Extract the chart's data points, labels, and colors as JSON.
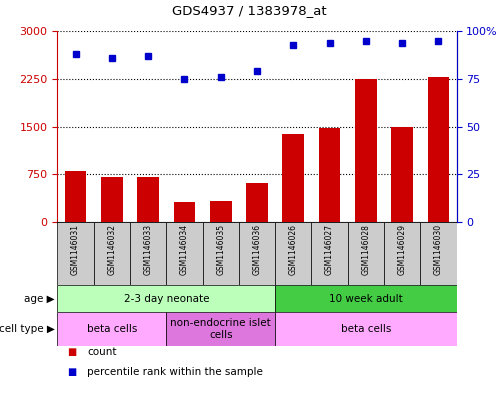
{
  "title": "GDS4937 / 1383978_at",
  "samples": [
    "GSM1146031",
    "GSM1146032",
    "GSM1146033",
    "GSM1146034",
    "GSM1146035",
    "GSM1146036",
    "GSM1146026",
    "GSM1146027",
    "GSM1146028",
    "GSM1146029",
    "GSM1146030"
  ],
  "counts": [
    800,
    710,
    710,
    310,
    330,
    610,
    1380,
    1480,
    2250,
    1500,
    2280
  ],
  "percentiles": [
    88,
    86,
    87,
    75,
    76,
    79,
    93,
    94,
    95,
    94,
    95
  ],
  "ylim_left": [
    0,
    3000
  ],
  "ylim_right": [
    0,
    100
  ],
  "yticks_left": [
    0,
    750,
    1500,
    2250,
    3000
  ],
  "yticks_right": [
    0,
    25,
    50,
    75,
    100
  ],
  "ytick_right_labels": [
    "0",
    "25",
    "50",
    "75",
    "100%"
  ],
  "bar_color": "#cc0000",
  "dot_color": "#0000cc",
  "age_groups": [
    {
      "label": "2-3 day neonate",
      "start": 0,
      "end": 6,
      "color": "#bbffbb"
    },
    {
      "label": "10 week adult",
      "start": 6,
      "end": 11,
      "color": "#44cc44"
    }
  ],
  "cell_type_groups": [
    {
      "label": "beta cells",
      "start": 0,
      "end": 3,
      "color": "#ffaaff"
    },
    {
      "label": "non-endocrine islet\ncells",
      "start": 3,
      "end": 6,
      "color": "#dd77dd"
    },
    {
      "label": "beta cells",
      "start": 6,
      "end": 11,
      "color": "#ffaaff"
    }
  ],
  "legend_items": [
    {
      "label": "count",
      "color": "#cc0000"
    },
    {
      "label": "percentile rank within the sample",
      "color": "#0000cc"
    }
  ],
  "left_axis_color": "#cc0000",
  "right_axis_color": "#0000cc",
  "sample_bg_color": "#cccccc",
  "grid_linestyle": ":",
  "grid_linewidth": 0.8
}
